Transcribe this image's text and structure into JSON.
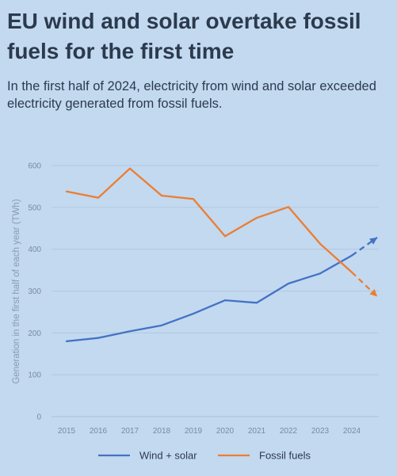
{
  "header": {
    "title": "EU wind and solar overtake fossil fuels for the first time",
    "subtitle": "In the first half of 2024, electricity from wind and solar exceeded electricity generated from fossil fuels."
  },
  "chart_data": {
    "type": "line",
    "title": "EU wind and solar overtake fossil fuels for the first time",
    "subtitle": "In the first half of 2024, electricity from wind and solar exceeded electricity generated from fossil fuels.",
    "xlabel": "",
    "ylabel": "Generation in the first half of each year (TWh)",
    "x": [
      "2015",
      "2016",
      "2017",
      "2018",
      "2019",
      "2020",
      "2021",
      "2022",
      "2023",
      "2024"
    ],
    "ylim": [
      0,
      600
    ],
    "yticks": [
      0,
      100,
      200,
      300,
      400,
      500,
      600
    ],
    "grid": true,
    "legend": "bottom",
    "series": [
      {
        "name": "Wind + solar",
        "color": "#4472c4",
        "values": [
          180,
          188,
          204,
          218,
          246,
          278,
          272,
          318,
          342,
          385
        ],
        "dashed_extension": {
          "x": "2024.8",
          "value": 428
        }
      },
      {
        "name": "Fossil fuels",
        "color": "#ed7d31",
        "values": [
          538,
          523,
          593,
          528,
          520,
          431,
          475,
          501,
          413,
          345
        ],
        "dashed_extension": {
          "x": "2024.8",
          "value": 287
        }
      }
    ]
  }
}
